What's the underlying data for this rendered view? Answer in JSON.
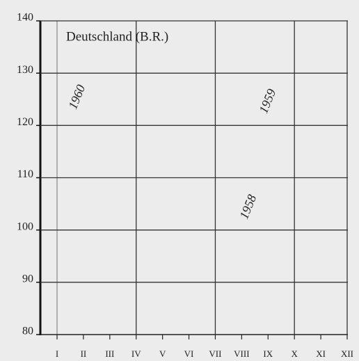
{
  "chart_data": {
    "type": "line",
    "title": "Deutschland (B.R.)",
    "categories": [
      "I",
      "II",
      "III",
      "IV",
      "V",
      "VI",
      "VII",
      "VIII",
      "IX",
      "X",
      "XI",
      "XII"
    ],
    "series": [],
    "ylim": [
      80,
      140
    ],
    "yticks": [
      80,
      90,
      100,
      110,
      120,
      130,
      140
    ],
    "grid": true,
    "annotations": [
      "1960",
      "1959",
      "1958"
    ]
  }
}
